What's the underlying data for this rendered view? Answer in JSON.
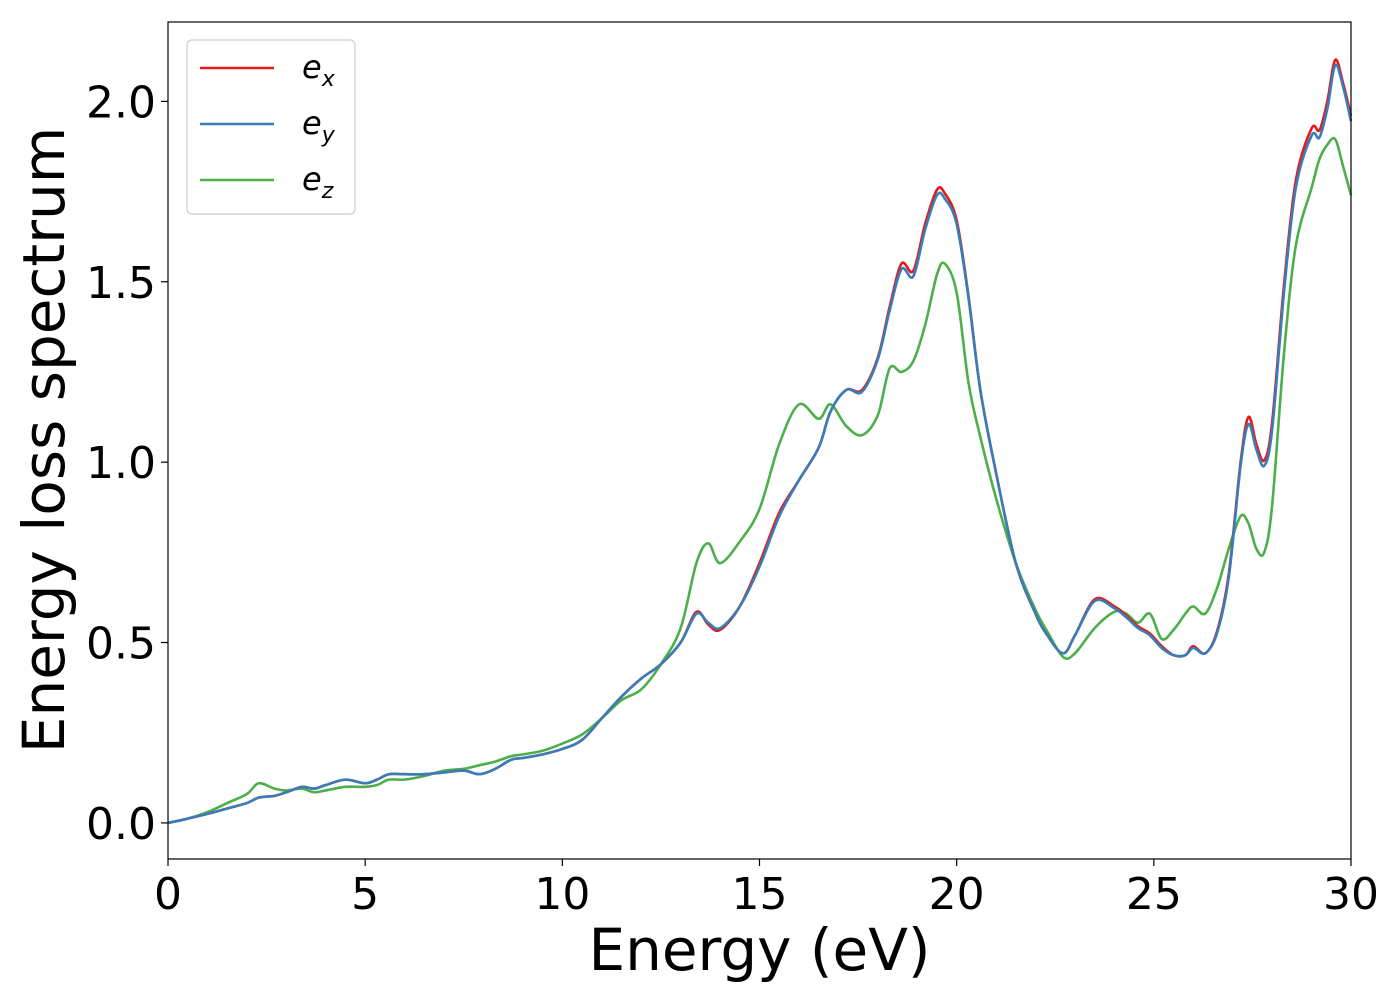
{
  "chart_data": {
    "type": "line",
    "xlabel": "Energy (eV)",
    "ylabel": "Energy loss spectrum",
    "xlim": [
      0,
      30
    ],
    "ylim": [
      -0.1,
      2.22
    ],
    "xticks": [
      "0",
      "5",
      "10",
      "15",
      "20",
      "25",
      "30"
    ],
    "yticks": [
      "0.0",
      "0.5",
      "1.0",
      "1.5",
      "2.0"
    ],
    "grid": false,
    "legend_position": "top-left",
    "x": [
      0,
      0.5,
      1.0,
      1.5,
      2.0,
      2.3,
      2.7,
      3.0,
      3.4,
      3.7,
      4.0,
      4.5,
      5.0,
      5.3,
      5.6,
      6.0,
      6.5,
      7.0,
      7.5,
      7.9,
      8.3,
      8.7,
      9.0,
      9.5,
      10.0,
      10.5,
      11.0,
      11.5,
      12.0,
      12.5,
      13.0,
      13.4,
      13.7,
      14.0,
      14.5,
      15.0,
      15.5,
      16.0,
      16.5,
      16.8,
      17.2,
      17.6,
      18.0,
      18.3,
      18.6,
      18.9,
      19.2,
      19.5,
      19.7,
      20.0,
      20.3,
      20.6,
      21.0,
      21.5,
      22.0,
      22.3,
      22.7,
      23.0,
      23.5,
      24.0,
      24.3,
      24.6,
      24.9,
      25.2,
      25.5,
      25.8,
      26.0,
      26.3,
      26.6,
      26.9,
      27.2,
      27.4,
      27.6,
      27.8,
      28.0,
      28.3,
      28.6,
      29.0,
      29.2,
      29.4,
      29.6,
      29.8,
      30.0
    ],
    "series": [
      {
        "name": "e_x",
        "label_main": "e",
        "label_sub": "x",
        "color": "#e41a1c",
        "values": [
          0.0,
          0.012,
          0.025,
          0.04,
          0.055,
          0.07,
          0.075,
          0.085,
          0.1,
          0.095,
          0.105,
          0.12,
          0.11,
          0.12,
          0.135,
          0.135,
          0.135,
          0.14,
          0.145,
          0.135,
          0.15,
          0.175,
          0.18,
          0.19,
          0.205,
          0.23,
          0.29,
          0.35,
          0.4,
          0.44,
          0.5,
          0.585,
          0.55,
          0.535,
          0.6,
          0.72,
          0.86,
          0.95,
          1.04,
          1.14,
          1.2,
          1.2,
          1.29,
          1.43,
          1.55,
          1.53,
          1.66,
          1.755,
          1.745,
          1.67,
          1.46,
          1.2,
          0.97,
          0.72,
          0.58,
          0.52,
          0.47,
          0.52,
          0.62,
          0.6,
          0.575,
          0.545,
          0.525,
          0.49,
          0.465,
          0.465,
          0.49,
          0.47,
          0.53,
          0.69,
          1.0,
          1.125,
          1.05,
          1.005,
          1.11,
          1.49,
          1.78,
          1.925,
          1.92,
          2.0,
          2.115,
          2.05,
          1.96
        ]
      },
      {
        "name": "e_y",
        "label_main": "e",
        "label_sub": "y",
        "color": "#377eb8",
        "values": [
          0.0,
          0.012,
          0.025,
          0.04,
          0.055,
          0.07,
          0.075,
          0.085,
          0.1,
          0.095,
          0.105,
          0.12,
          0.11,
          0.12,
          0.135,
          0.135,
          0.135,
          0.14,
          0.145,
          0.135,
          0.15,
          0.175,
          0.18,
          0.19,
          0.205,
          0.23,
          0.29,
          0.35,
          0.4,
          0.44,
          0.5,
          0.58,
          0.555,
          0.54,
          0.6,
          0.71,
          0.85,
          0.95,
          1.04,
          1.14,
          1.2,
          1.195,
          1.285,
          1.42,
          1.535,
          1.515,
          1.645,
          1.74,
          1.73,
          1.66,
          1.455,
          1.2,
          0.97,
          0.72,
          0.58,
          0.52,
          0.47,
          0.52,
          0.615,
          0.595,
          0.57,
          0.54,
          0.52,
          0.485,
          0.465,
          0.465,
          0.485,
          0.47,
          0.525,
          0.68,
          0.99,
          1.105,
          1.035,
          0.99,
          1.09,
          1.47,
          1.76,
          1.905,
          1.9,
          1.98,
          2.1,
          2.04,
          1.945
        ]
      },
      {
        "name": "e_z",
        "label_main": "e",
        "label_sub": "z",
        "color": "#4daf4a",
        "values": [
          0.0,
          0.012,
          0.03,
          0.055,
          0.08,
          0.11,
          0.095,
          0.09,
          0.095,
          0.085,
          0.09,
          0.1,
          0.1,
          0.105,
          0.12,
          0.12,
          0.13,
          0.145,
          0.15,
          0.16,
          0.17,
          0.185,
          0.19,
          0.2,
          0.22,
          0.245,
          0.29,
          0.34,
          0.37,
          0.44,
          0.54,
          0.72,
          0.775,
          0.72,
          0.78,
          0.87,
          1.05,
          1.16,
          1.12,
          1.16,
          1.1,
          1.075,
          1.13,
          1.26,
          1.25,
          1.28,
          1.38,
          1.52,
          1.55,
          1.47,
          1.22,
          1.07,
          0.9,
          0.72,
          0.59,
          0.53,
          0.46,
          0.47,
          0.54,
          0.585,
          0.58,
          0.555,
          0.58,
          0.51,
          0.535,
          0.58,
          0.6,
          0.58,
          0.65,
          0.76,
          0.85,
          0.83,
          0.76,
          0.75,
          0.88,
          1.3,
          1.6,
          1.76,
          1.84,
          1.88,
          1.895,
          1.82,
          1.74
        ]
      }
    ]
  }
}
